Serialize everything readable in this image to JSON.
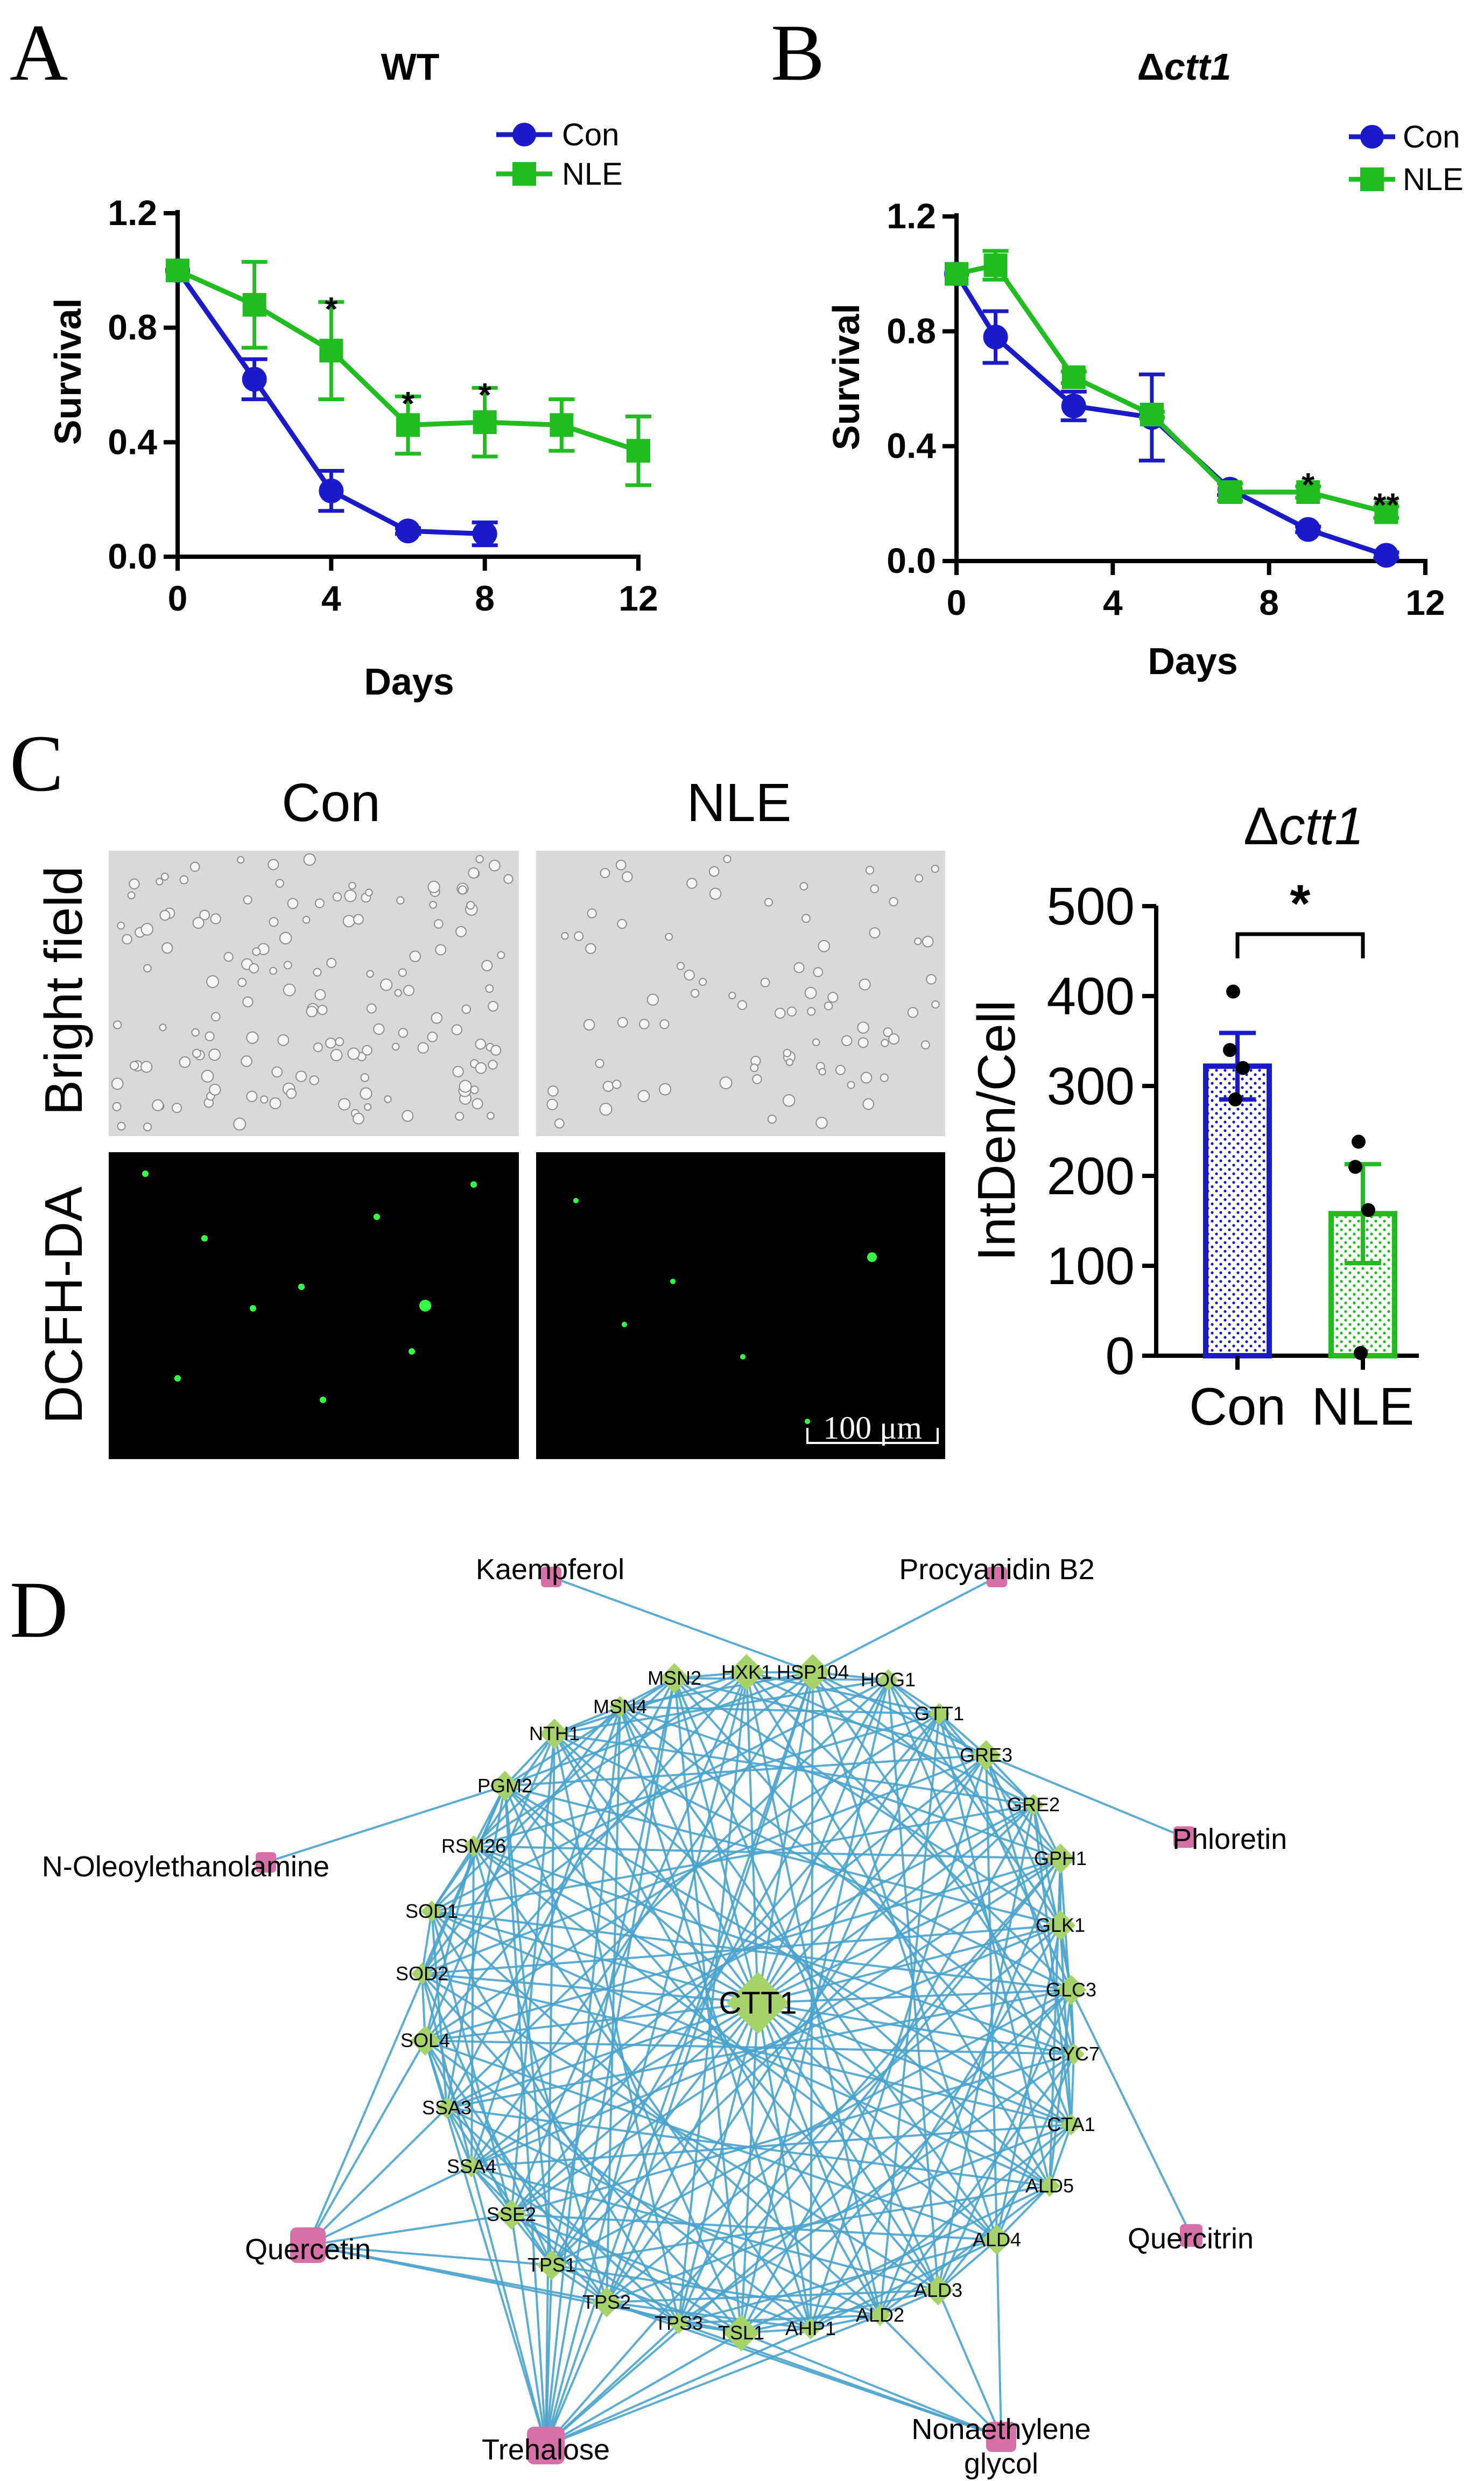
{
  "colors": {
    "con": "#1a1ac8",
    "nle": "#22bb22",
    "edge": "#4aa3cc",
    "gene": "#a6d26a",
    "compound": "#d76fa8",
    "cell_bg": "#d9d9d9",
    "fluor_bg": "#000000",
    "fluor_dot": "#33ff44"
  },
  "panelA": {
    "label": "A",
    "chart_data": {
      "type": "line",
      "title": "WT",
      "xlabel": "Days",
      "ylabel": "Survival",
      "xlim": [
        0,
        12
      ],
      "ylim": [
        0,
        1.2
      ],
      "xticks": [
        "0",
        "4",
        "8",
        "12"
      ],
      "yticks": [
        "0.0",
        "0.4",
        "0.8",
        "1.2"
      ],
      "legend": [
        "Con",
        "NLE"
      ],
      "series": [
        {
          "name": "Con",
          "x": [
            0,
            2,
            4,
            6,
            8
          ],
          "y": [
            1.0,
            0.62,
            0.23,
            0.09,
            0.08
          ],
          "err": [
            0.0,
            0.07,
            0.07,
            0.01,
            0.04
          ]
        },
        {
          "name": "NLE",
          "x": [
            0,
            2,
            4,
            6,
            8,
            10,
            12
          ],
          "y": [
            1.0,
            0.88,
            0.72,
            0.46,
            0.47,
            0.46,
            0.37
          ],
          "err": [
            0.0,
            0.15,
            0.17,
            0.1,
            0.12,
            0.09,
            0.12
          ]
        }
      ],
      "significance": [
        {
          "x": 4,
          "y": 0.9,
          "text": "*"
        },
        {
          "x": 6,
          "y": 0.57,
          "text": "*"
        },
        {
          "x": 8,
          "y": 0.6,
          "text": "*"
        }
      ]
    }
  },
  "panelB": {
    "label": "B",
    "chart_data": {
      "type": "line",
      "title_prefix": "Δ",
      "title_gene": "ctt1",
      "xlabel": "Days",
      "ylabel": "Survival",
      "xlim": [
        0,
        12
      ],
      "ylim": [
        0,
        1.2
      ],
      "xticks": [
        "0",
        "4",
        "8",
        "12"
      ],
      "yticks": [
        "0.0",
        "0.4",
        "0.8",
        "1.2"
      ],
      "legend": [
        "Con",
        "NLE"
      ],
      "series": [
        {
          "name": "Con",
          "x": [
            0,
            1,
            3,
            5,
            7,
            9,
            11
          ],
          "y": [
            1.0,
            0.78,
            0.54,
            0.5,
            0.25,
            0.11,
            0.02
          ],
          "err": [
            0.0,
            0.09,
            0.05,
            0.15,
            0.02,
            0.01,
            0.01
          ]
        },
        {
          "name": "NLE",
          "x": [
            0,
            1,
            3,
            5,
            7,
            9,
            11
          ],
          "y": [
            1.0,
            1.03,
            0.64,
            0.51,
            0.24,
            0.24,
            0.17
          ],
          "err": [
            0.0,
            0.05,
            0.02,
            0.01,
            0.03,
            0.02,
            0.02
          ]
        }
      ],
      "significance": [
        {
          "x": 9,
          "y": 0.3,
          "text": "*"
        },
        {
          "x": 11,
          "y": 0.23,
          "text": "**"
        }
      ]
    }
  },
  "panelC": {
    "label": "C",
    "col_labels": [
      "Con",
      "NLE"
    ],
    "row_labels": [
      "Bright field",
      "DCFH-DA"
    ],
    "scale_bar": "100 μm",
    "chart_data": {
      "type": "bar",
      "title_prefix": "Δ",
      "title_gene": "ctt1",
      "categories": [
        "Con",
        "NLE"
      ],
      "values": [
        322,
        158
      ],
      "errors": [
        37,
        55
      ],
      "points": [
        [
          405,
          340,
          320,
          285
        ],
        [
          238,
          210,
          162,
          3
        ]
      ],
      "ylabel": "IntDen/Cell",
      "ylim": [
        0,
        500
      ],
      "yticks": [
        "0",
        "100",
        "200",
        "300",
        "400",
        "500"
      ],
      "significance": "*"
    }
  },
  "panelD": {
    "label": "D",
    "hub": "CTT1",
    "genes": [
      "HXK1",
      "HSP104",
      "HOG1",
      "GTT1",
      "GRE3",
      "GRE2",
      "GPH1",
      "GLK1",
      "GLC3",
      "CYC7",
      "CTA1",
      "ALD5",
      "ALD4",
      "ALD3",
      "ALD2",
      "AHP1",
      "TSL1",
      "TPS3",
      "TPS2",
      "TPS1",
      "SSE2",
      "SSA4",
      "SSA3",
      "SOL4",
      "SOD2",
      "SOD1",
      "RSM26",
      "PGM2",
      "NTH1",
      "MSN4",
      "MSN2"
    ],
    "compounds": [
      "Kaempferol",
      "Procyanidin B2",
      "Phloretin",
      "N-Oleoylethanolamine",
      "Quercetin",
      "Quercitrin",
      "Trehalose",
      "Nonaethylene glycol"
    ]
  }
}
